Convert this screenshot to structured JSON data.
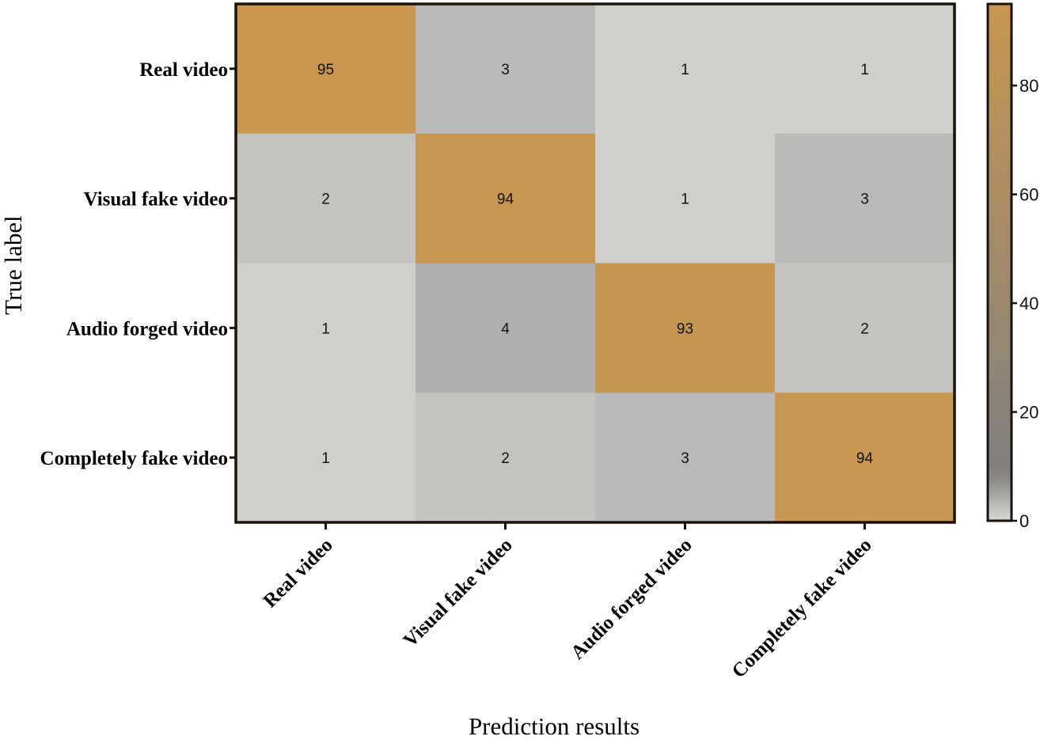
{
  "chart_data": {
    "type": "heatmap",
    "title": "",
    "xlabel": "Prediction results",
    "ylabel": "True label",
    "x_categories": [
      "Real video",
      "Visual fake video",
      "Audio forged video",
      "Completely fake video"
    ],
    "y_categories": [
      "Real video",
      "Visual fake video",
      "Audio forged video",
      "Completely fake video"
    ],
    "values": [
      [
        95,
        3,
        1,
        1
      ],
      [
        2,
        94,
        1,
        3
      ],
      [
        1,
        4,
        93,
        2
      ],
      [
        1,
        2,
        3,
        94
      ]
    ],
    "colorbar": {
      "range": [
        0,
        95
      ],
      "ticks": [
        0,
        20,
        40,
        60,
        80
      ],
      "low_color": "#d8d8d4",
      "mid_color": "#808080",
      "high_color": "#c8964f"
    }
  }
}
